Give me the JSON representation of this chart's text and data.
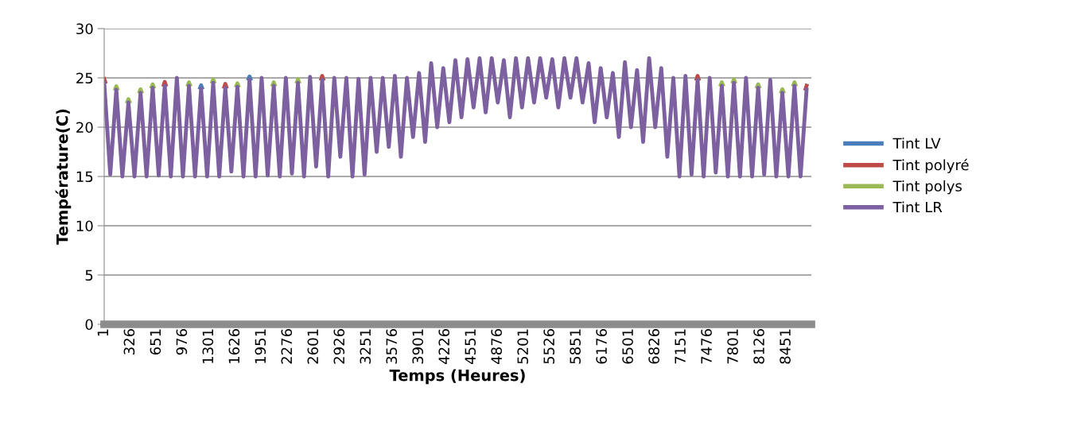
{
  "chart_data": {
    "type": "line",
    "xlabel": "Temps (Heures)",
    "ylabel": "Température(C)",
    "x": [
      1,
      76,
      151,
      226,
      301,
      376,
      451,
      526,
      601,
      676,
      751,
      826,
      901,
      976,
      1051,
      1126,
      1201,
      1276,
      1351,
      1426,
      1501,
      1576,
      1651,
      1726,
      1801,
      1876,
      1951,
      2026,
      2101,
      2176,
      2251,
      2326,
      2401,
      2476,
      2551,
      2626,
      2701,
      2776,
      2851,
      2926,
      3001,
      3076,
      3151,
      3226,
      3301,
      3376,
      3451,
      3526,
      3601,
      3676,
      3751,
      3826,
      3901,
      3976,
      4051,
      4126,
      4201,
      4276,
      4351,
      4426,
      4501,
      4576,
      4651,
      4726,
      4801,
      4876,
      4951,
      5026,
      5101,
      5176,
      5251,
      5326,
      5401,
      5476,
      5551,
      5626,
      5701,
      5776,
      5851,
      5926,
      6001,
      6076,
      6151,
      6226,
      6301,
      6376,
      6451,
      6526,
      6601,
      6676,
      6751,
      6826,
      6901,
      6976,
      7051,
      7126,
      7201,
      7276,
      7351,
      7426,
      7501,
      7576,
      7651,
      7726,
      7801,
      7876,
      7951,
      8026,
      8101,
      8176,
      8251,
      8326,
      8401,
      8476,
      8551,
      8626,
      8701
    ],
    "series": [
      {
        "name": "Tint LV",
        "color": "#4a7ebb",
        "x": [
          1189,
          1201,
          1213,
          1240,
          1789,
          1801,
          1813
        ],
        "values": [
          24.0,
          24.25,
          24.0,
          null,
          24.9,
          25.15,
          24.9
        ]
      },
      {
        "name": "Tint polyré",
        "color": "#be4b48",
        "x": [
          1,
          13,
          40,
          739,
          751,
          763,
          790,
          1489,
          1501,
          1513,
          1540,
          2689,
          2701,
          2713,
          2740,
          7339,
          7351,
          7363,
          7390,
          8689,
          8701
        ],
        "values": [
          24.9,
          24.6,
          null,
          24.3,
          24.6,
          24.3,
          null,
          24.1,
          24.4,
          24.1,
          null,
          24.9,
          25.2,
          24.9,
          null,
          24.9,
          25.2,
          24.9,
          null,
          23.9,
          24.2
        ]
      },
      {
        "name": "Tint polys",
        "color": "#98b954",
        "x": [
          139,
          151,
          163,
          190,
          289,
          301,
          313,
          340,
          439,
          451,
          463,
          490,
          589,
          601,
          613,
          640,
          1039,
          1051,
          1063,
          1090,
          1339,
          1351,
          1363,
          1390,
          1639,
          1651,
          1663,
          1690,
          2089,
          2101,
          2113,
          2140,
          2389,
          2401,
          2413,
          2440,
          7639,
          7651,
          7663,
          7690,
          7789,
          7801,
          7813,
          7840,
          8089,
          8101,
          8113,
          8140,
          8389,
          8401,
          8413,
          8440,
          8539,
          8551,
          8563
        ],
        "values": [
          23.9,
          24.15,
          23.9,
          null,
          22.6,
          22.85,
          22.6,
          null,
          23.6,
          23.85,
          23.6,
          null,
          24.1,
          24.35,
          24.1,
          null,
          24.3,
          24.55,
          24.3,
          null,
          24.6,
          24.85,
          24.6,
          null,
          24.2,
          24.45,
          24.2,
          null,
          24.3,
          24.55,
          24.3,
          null,
          24.6,
          24.85,
          24.6,
          null,
          24.3,
          24.55,
          24.3,
          null,
          24.6,
          24.85,
          24.6,
          null,
          24.1,
          24.35,
          24.1,
          null,
          23.6,
          23.85,
          23.6,
          null,
          24.3,
          24.55,
          24.3
        ]
      },
      {
        "name": "Tint LR",
        "color": "#7d60a0",
        "values": [
          24.5,
          15.2,
          23.8,
          15,
          22.5,
          15,
          23.5,
          15,
          24,
          15.1,
          24.2,
          15,
          25,
          15,
          24.2,
          15,
          23.9,
          15,
          24.5,
          15,
          24,
          15.5,
          24.1,
          15,
          24.8,
          15,
          25,
          15.1,
          24.2,
          15,
          25,
          15.3,
          24.5,
          15,
          25.1,
          16,
          24.8,
          15,
          25,
          17,
          25,
          15,
          24.9,
          15.2,
          25,
          17.5,
          25,
          18,
          25.2,
          17,
          25,
          19,
          25.5,
          18.5,
          26.5,
          20,
          26,
          20.5,
          26.8,
          21,
          26.9,
          22,
          27,
          21.5,
          27,
          22.5,
          26.8,
          21,
          27,
          22,
          27,
          22.5,
          27,
          23,
          26.9,
          22,
          27,
          23,
          27,
          22.5,
          26.5,
          20.5,
          26,
          21,
          25.5,
          19,
          26.6,
          20,
          25.8,
          18.5,
          27,
          20,
          26,
          17,
          25,
          15,
          25.2,
          15.2,
          24.8,
          15,
          25,
          15.4,
          24.2,
          15,
          24.5,
          15,
          25,
          15,
          24,
          15.2,
          24.8,
          15,
          23.5,
          15,
          24.2,
          15,
          23.8
        ]
      }
    ],
    "xlim": [
      1,
      8760
    ],
    "xticks": [
      1,
      326,
      651,
      976,
      1301,
      1626,
      1951,
      2276,
      2601,
      2926,
      3251,
      3576,
      3901,
      4226,
      4551,
      4876,
      5201,
      5526,
      5851,
      6176,
      6501,
      6826,
      7151,
      7476,
      7801,
      8126,
      8451
    ],
    "ylim": [
      0,
      30
    ],
    "yticks": [
      0,
      5,
      10,
      15,
      20,
      25,
      30
    ],
    "grid": "y",
    "legend": "right",
    "marker": "none",
    "line_style": "solid"
  }
}
